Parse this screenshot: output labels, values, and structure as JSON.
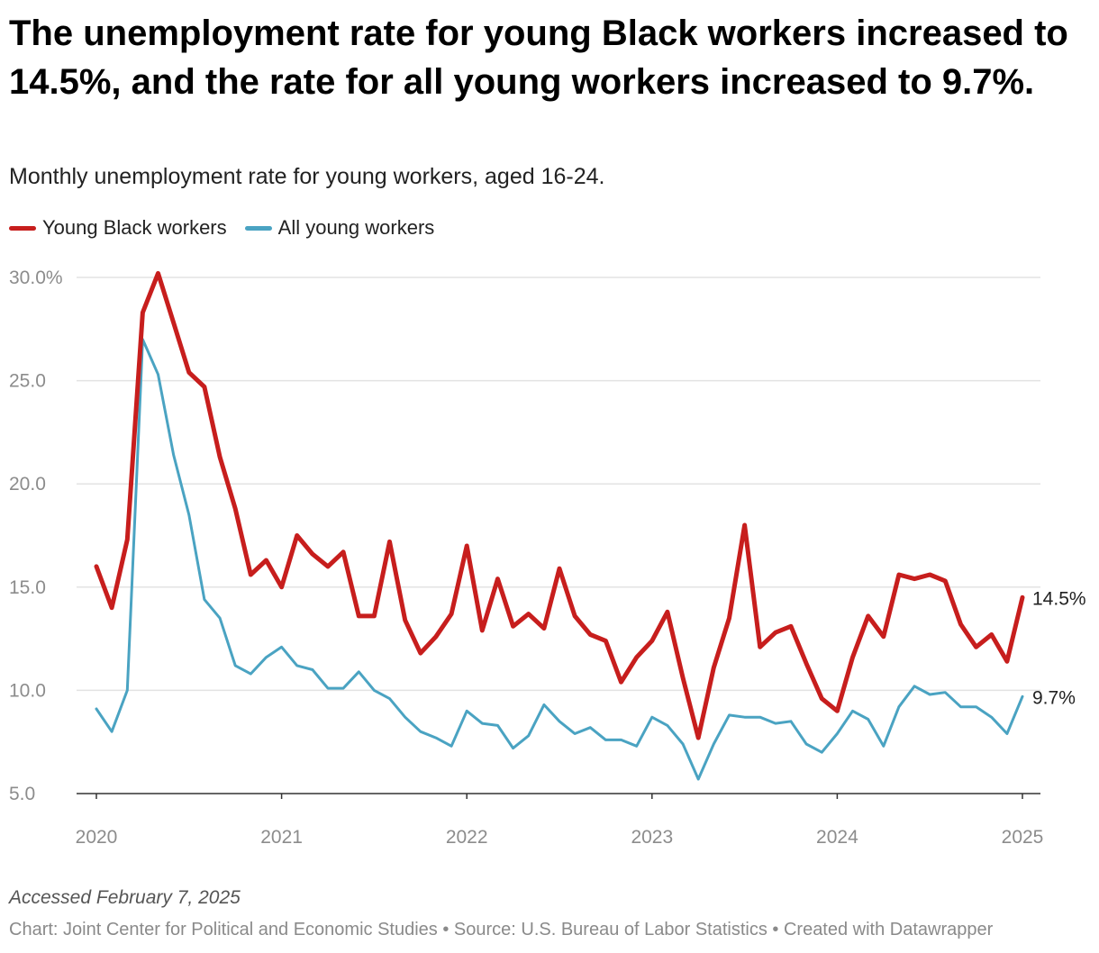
{
  "title": "The unemployment rate for young Black workers increased to 14.5%, and the rate for all young workers increased to 9.7%.",
  "subtitle": "Monthly unemployment rate for young workers, aged 16-24.",
  "legend": {
    "black": "Young Black workers",
    "all": "All young workers"
  },
  "colors": {
    "black": "#c71e1d",
    "all": "#4aa3c2",
    "grid": "#e3e3e3",
    "axis": "#333333"
  },
  "accessed": "Accessed February 7, 2025",
  "footer": "Chart: Joint Center for Political and Economic Studies • Source: U.S. Bureau of Labor Statistics • Created with Datawrapper",
  "chart_data": {
    "type": "line",
    "title": "The unemployment rate for young Black workers increased to 14.5%, and the rate for all young workers increased to 9.7%.",
    "xlabel": "",
    "ylabel": "",
    "x_start": "2020-01",
    "x_step": "month",
    "xlim": [
      2020,
      2025
    ],
    "ylim": [
      5,
      30
    ],
    "y_ticks": [
      {
        "value": 30,
        "label": "30.0%"
      },
      {
        "value": 25,
        "label": "25.0"
      },
      {
        "value": 20,
        "label": "20.0"
      },
      {
        "value": 15,
        "label": "15.0"
      },
      {
        "value": 10,
        "label": "10.0"
      },
      {
        "value": 5,
        "label": "5.0"
      }
    ],
    "x_ticks": [
      {
        "value": 2020,
        "label": "2020"
      },
      {
        "value": 2021,
        "label": "2021"
      },
      {
        "value": 2022,
        "label": "2022"
      },
      {
        "value": 2023,
        "label": "2023"
      },
      {
        "value": 2024,
        "label": "2024"
      },
      {
        "value": 2025,
        "label": "2025"
      }
    ],
    "series": [
      {
        "name": "Young Black workers",
        "key": "black",
        "end_label": "14.5%",
        "values": [
          16.0,
          14.0,
          17.3,
          28.3,
          30.2,
          27.8,
          25.4,
          24.7,
          21.3,
          18.8,
          15.6,
          16.3,
          15.0,
          17.5,
          16.6,
          16.0,
          16.7,
          13.6,
          13.6,
          17.2,
          13.4,
          11.8,
          12.6,
          13.7,
          17.0,
          12.9,
          15.4,
          13.1,
          13.7,
          13.0,
          15.9,
          13.6,
          12.7,
          12.4,
          10.4,
          11.6,
          12.4,
          13.8,
          10.6,
          7.7,
          11.1,
          13.5,
          18.0,
          12.1,
          12.8,
          13.1,
          11.3,
          9.6,
          9.0,
          11.6,
          13.6,
          12.6,
          15.6,
          15.4,
          15.6,
          15.3,
          13.2,
          12.1,
          12.7,
          11.4,
          14.5
        ]
      },
      {
        "name": "All young workers",
        "key": "all",
        "end_label": "9.7%",
        "values": [
          9.1,
          8.0,
          10.0,
          27.0,
          25.3,
          21.4,
          18.5,
          14.4,
          13.5,
          11.2,
          10.8,
          11.6,
          12.1,
          11.2,
          11.0,
          10.1,
          10.1,
          10.9,
          10.0,
          9.6,
          8.7,
          8.0,
          7.7,
          7.3,
          9.0,
          8.4,
          8.3,
          7.2,
          7.8,
          9.3,
          8.5,
          7.9,
          8.2,
          7.6,
          7.6,
          7.3,
          8.7,
          8.3,
          7.4,
          5.7,
          7.4,
          8.8,
          8.7,
          8.7,
          8.4,
          8.5,
          7.4,
          7.0,
          7.9,
          9.0,
          8.6,
          7.3,
          9.2,
          10.2,
          9.8,
          9.9,
          9.2,
          9.2,
          8.7,
          7.9,
          9.7
        ]
      }
    ]
  }
}
